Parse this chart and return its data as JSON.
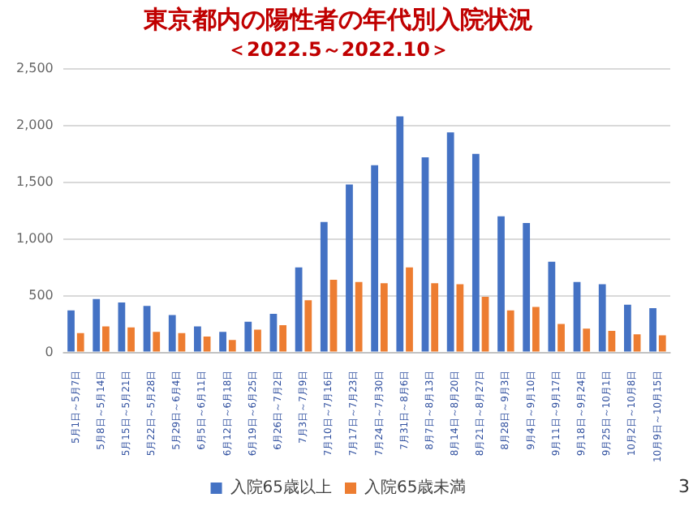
{
  "chart_data": {
    "type": "bar",
    "title": "東京都内の陽性者の年代別入院状況",
    "subtitle": "＜2022.5～2022.10＞",
    "categories": [
      "5月1日～5月7日",
      "5月8日～5月14日",
      "5月15日～5月21日",
      "5月22日～5月28日",
      "5月29日～6月4日",
      "6月5日～6月11日",
      "6月12日～6月18日",
      "6月19日～6月25日",
      "6月26日～7月2日",
      "7月3日～7月9日",
      "7月10日～7月16日",
      "7月17日～7月23日",
      "7月24日～7月30日",
      "7月31日～8月6日",
      "8月7日～8月13日",
      "8月14日～8月20日",
      "8月21日～8月27日",
      "8月28日～9月3日",
      "9月4日～9月10日",
      "9月11日～9月17日",
      "9月18日～9月24日",
      "9月25日～10月1日",
      "10月2日～10月8日",
      "10月9日～10月15日"
    ],
    "series": [
      {
        "name": "入院65歳以上",
        "color": "#4472c4",
        "values": [
          370,
          470,
          440,
          410,
          330,
          230,
          180,
          270,
          340,
          750,
          1150,
          1480,
          1650,
          2080,
          1720,
          1940,
          1750,
          1200,
          1140,
          800,
          620,
          600,
          420,
          390
        ]
      },
      {
        "name": "入院65歳未満",
        "color": "#ed7d31",
        "values": [
          170,
          230,
          220,
          180,
          170,
          140,
          110,
          200,
          240,
          460,
          640,
          620,
          610,
          750,
          610,
          600,
          490,
          370,
          400,
          250,
          210,
          190,
          160,
          150
        ]
      }
    ],
    "ylim": [
      0,
      2500
    ],
    "yticks": [
      0,
      500,
      {
        "value": 1000,
        "label": "1,000"
      },
      {
        "value": 1500,
        "label": "1,500"
      },
      {
        "value": 2000,
        "label": "2,000"
      },
      {
        "value": 2500,
        "label": "2,500"
      }
    ],
    "grid": "y",
    "legend": "bottom",
    "annotations": [
      "3"
    ]
  }
}
